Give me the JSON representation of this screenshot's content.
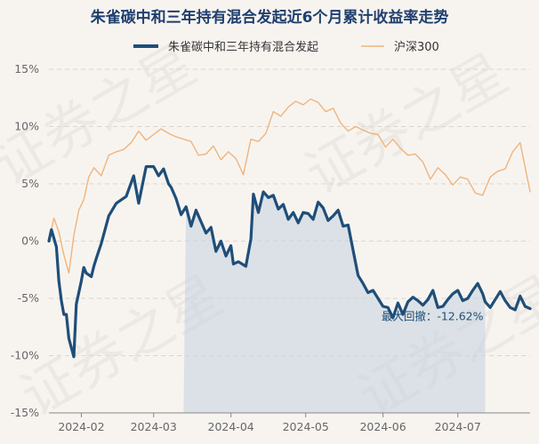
{
  "watermark": "证券之星",
  "chart_data": {
    "type": "line",
    "title": "朱雀碳中和三年持有混合发起近6个月累计收益率走势",
    "ylim": [
      -15,
      15
    ],
    "y_ticks": [
      15,
      10,
      5,
      0,
      -5,
      -10,
      -15
    ],
    "y_tick_labels": [
      "15%",
      "10%",
      "5%",
      "0%",
      "-5%",
      "-10%",
      "-15%"
    ],
    "x_range": [
      "2024-01-19",
      "2024-07-30"
    ],
    "x_ticks": [
      "2024-02-01",
      "2024-03-01",
      "2024-04-01",
      "2024-05-01",
      "2024-06-01",
      "2024-07-01"
    ],
    "x_tick_labels": [
      "2024-02",
      "2024-03",
      "2024-04",
      "2024-05",
      "2024-06",
      "2024-07"
    ],
    "grid": true,
    "legend_position": "top",
    "drawdown_shade": {
      "start": "2024-03-13",
      "end": "2024-07-12"
    },
    "annotation": {
      "text": "最大回撤：-12.62%",
      "x": "2024-07-12",
      "y": -6.6
    },
    "series": [
      {
        "name": "朱雀碳中和三年持有混合发起",
        "color": "#1f4e79",
        "x": [
          "2024-01-19",
          "2024-01-20",
          "2024-01-22",
          "2024-01-23",
          "2024-01-24",
          "2024-01-25",
          "2024-01-26",
          "2024-01-27",
          "2024-01-29",
          "2024-01-30",
          "2024-02-01",
          "2024-02-02",
          "2024-02-03",
          "2024-02-05",
          "2024-02-06",
          "2024-02-07",
          "2024-02-09",
          "2024-02-12",
          "2024-02-15",
          "2024-02-19",
          "2024-02-22",
          "2024-02-24",
          "2024-02-27",
          "2024-03-01",
          "2024-03-03",
          "2024-03-05",
          "2024-03-07",
          "2024-03-08",
          "2024-03-10",
          "2024-03-12",
          "2024-03-14",
          "2024-03-16",
          "2024-03-18",
          "2024-03-20",
          "2024-03-22",
          "2024-03-24",
          "2024-03-26",
          "2024-03-28",
          "2024-03-30",
          "2024-04-01",
          "2024-04-02",
          "2024-04-04",
          "2024-04-07",
          "2024-04-09",
          "2024-04-10",
          "2024-04-12",
          "2024-04-14",
          "2024-04-16",
          "2024-04-18",
          "2024-04-20",
          "2024-04-22",
          "2024-04-24",
          "2024-04-26",
          "2024-04-28",
          "2024-04-30",
          "2024-05-02",
          "2024-05-04",
          "2024-05-06",
          "2024-05-08",
          "2024-05-10",
          "2024-05-12",
          "2024-05-14",
          "2024-05-16",
          "2024-05-18",
          "2024-05-20",
          "2024-05-22",
          "2024-05-24",
          "2024-05-26",
          "2024-05-28",
          "2024-05-30",
          "2024-06-01",
          "2024-06-03",
          "2024-06-05",
          "2024-06-07",
          "2024-06-09",
          "2024-06-11",
          "2024-06-13",
          "2024-06-15",
          "2024-06-17",
          "2024-06-19",
          "2024-06-21",
          "2024-06-23",
          "2024-06-25",
          "2024-06-27",
          "2024-06-29",
          "2024-07-01",
          "2024-07-03",
          "2024-07-05",
          "2024-07-07",
          "2024-07-09",
          "2024-07-11",
          "2024-07-12",
          "2024-07-14",
          "2024-07-16",
          "2024-07-18",
          "2024-07-20",
          "2024-07-22",
          "2024-07-24",
          "2024-07-26",
          "2024-07-28",
          "2024-07-30"
        ],
        "values": [
          0,
          1.0,
          -0.5,
          -3.5,
          -5.2,
          -6.4,
          -6.4,
          -8.5,
          -10.1,
          -5.5,
          -3.5,
          -2.3,
          -2.8,
          -3.1,
          -2.2,
          -1.5,
          -0.2,
          2.2,
          3.3,
          3.9,
          5.7,
          3.3,
          6.5,
          6.5,
          5.7,
          6.3,
          5.0,
          4.7,
          3.7,
          2.3,
          3.0,
          1.3,
          2.7,
          1.7,
          0.7,
          1.2,
          -0.9,
          0.0,
          -1.3,
          -0.4,
          -2.0,
          -1.8,
          -2.2,
          0.2,
          4.1,
          2.5,
          4.3,
          3.8,
          4.0,
          2.8,
          3.2,
          1.9,
          2.5,
          1.6,
          2.5,
          2.4,
          1.9,
          3.4,
          2.9,
          1.8,
          2.2,
          2.7,
          1.3,
          1.4,
          -0.8,
          -3.0,
          -3.7,
          -4.5,
          -4.3,
          -5.0,
          -5.7,
          -5.8,
          -6.7,
          -5.4,
          -6.4,
          -5.3,
          -4.9,
          -5.2,
          -5.6,
          -5.1,
          -4.3,
          -5.8,
          -5.7,
          -5.1,
          -4.6,
          -4.3,
          -5.2,
          -5.0,
          -4.3,
          -3.7,
          -4.6,
          -5.3,
          -5.8,
          -5.1,
          -4.4,
          -5.2,
          -5.8,
          -6.0,
          -4.8,
          -5.7,
          -5.9
        ]
      },
      {
        "name": "沪深300",
        "color": "#f0b47c",
        "x": [
          "2024-01-19",
          "2024-01-21",
          "2024-01-23",
          "2024-01-25",
          "2024-01-27",
          "2024-01-29",
          "2024-01-31",
          "2024-02-02",
          "2024-02-04",
          "2024-02-06",
          "2024-02-09",
          "2024-02-12",
          "2024-02-15",
          "2024-02-18",
          "2024-02-21",
          "2024-02-24",
          "2024-02-27",
          "2024-03-01",
          "2024-03-04",
          "2024-03-07",
          "2024-03-10",
          "2024-03-13",
          "2024-03-16",
          "2024-03-19",
          "2024-03-22",
          "2024-03-25",
          "2024-03-28",
          "2024-03-31",
          "2024-04-03",
          "2024-04-06",
          "2024-04-09",
          "2024-04-12",
          "2024-04-15",
          "2024-04-18",
          "2024-04-21",
          "2024-04-24",
          "2024-04-27",
          "2024-04-30",
          "2024-05-03",
          "2024-05-06",
          "2024-05-09",
          "2024-05-12",
          "2024-05-15",
          "2024-05-18",
          "2024-05-21",
          "2024-05-24",
          "2024-05-27",
          "2024-05-30",
          "2024-06-02",
          "2024-06-05",
          "2024-06-08",
          "2024-06-11",
          "2024-06-14",
          "2024-06-17",
          "2024-06-20",
          "2024-06-23",
          "2024-06-26",
          "2024-06-29",
          "2024-07-02",
          "2024-07-05",
          "2024-07-08",
          "2024-07-11",
          "2024-07-14",
          "2024-07-17",
          "2024-07-20",
          "2024-07-23",
          "2024-07-26",
          "2024-07-30"
        ],
        "values": [
          0,
          2.0,
          0.8,
          -1.2,
          -2.8,
          0.5,
          2.7,
          3.6,
          5.6,
          6.4,
          5.7,
          7.5,
          7.8,
          8.0,
          8.6,
          9.6,
          8.8,
          9.3,
          9.8,
          9.4,
          9.1,
          8.9,
          8.7,
          7.5,
          7.6,
          8.3,
          7.1,
          7.8,
          7.2,
          5.8,
          8.9,
          8.7,
          9.4,
          11.3,
          10.9,
          11.7,
          12.2,
          11.9,
          12.4,
          12.1,
          11.3,
          11.6,
          10.3,
          9.6,
          10.0,
          9.7,
          9.4,
          9.3,
          8.2,
          8.9,
          8.1,
          7.5,
          7.6,
          6.9,
          5.4,
          6.4,
          5.8,
          4.9,
          5.6,
          5.4,
          4.2,
          4.0,
          5.6,
          6.1,
          6.3,
          7.8,
          8.6,
          4.3
        ]
      }
    ]
  }
}
